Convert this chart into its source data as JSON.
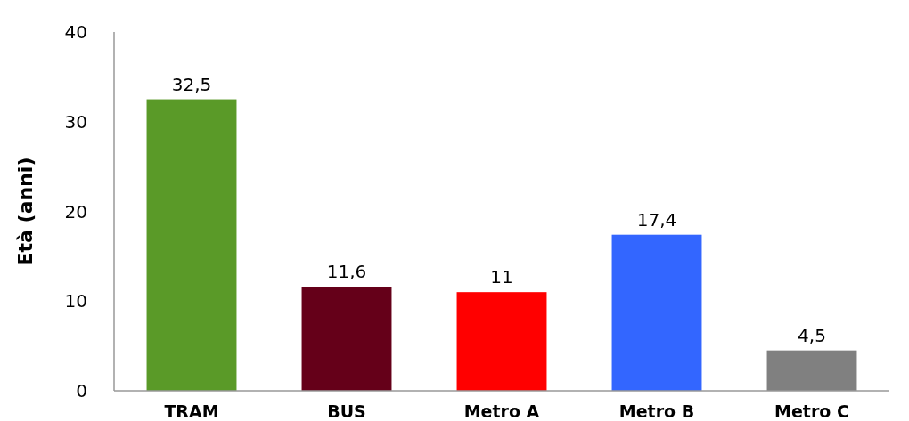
{
  "chart_data": {
    "type": "bar",
    "ylabel": "Età (anni)",
    "categories": [
      "TRAM",
      "BUS",
      "Metro A",
      "Metro B",
      "Metro C"
    ],
    "values": [
      32.5,
      11.6,
      11,
      17.4,
      4.5
    ],
    "colors": [
      "#5a9a28",
      "#650019",
      "#ff0000",
      "#3366ff",
      "#808080"
    ],
    "value_labels": [
      "32,5",
      "11,6",
      "11",
      "17,4",
      "4,5"
    ],
    "ylim": [
      0,
      40
    ],
    "yticks": [
      0,
      10,
      20,
      30,
      40
    ],
    "grid": false
  }
}
